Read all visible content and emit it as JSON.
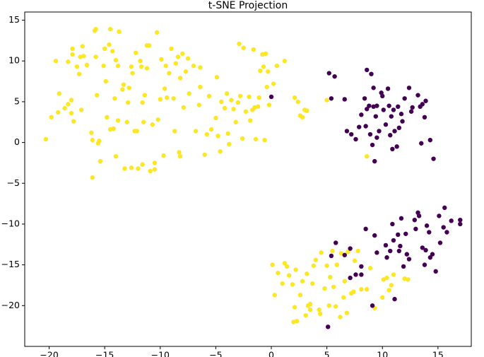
{
  "chart_data": {
    "type": "scatter",
    "title": "t-SNE Projection",
    "xlim": [
      -22.2,
      18.0
    ],
    "ylim": [
      -25,
      16
    ],
    "xticks": [
      {
        "value": -20,
        "label": "−20"
      },
      {
        "value": -15,
        "label": "−15"
      },
      {
        "value": -10,
        "label": "−10"
      },
      {
        "value": -5,
        "label": "−5"
      },
      0,
      5,
      10,
      15
    ],
    "yticks": [
      {
        "value": -20,
        "label": "−20"
      },
      {
        "value": -15,
        "label": "−15"
      },
      {
        "value": -10,
        "label": "−10"
      },
      {
        "value": -5,
        "label": "−5"
      },
      0,
      5,
      10,
      15
    ],
    "grid": false,
    "series": [
      {
        "color": "#fde725",
        "x": [
          -20.3,
          -19.8,
          -19.4,
          -19.2,
          -19.1,
          -18.6,
          -18.3,
          -18.3,
          -18.0,
          -18.0,
          -17.9,
          -17.9,
          -17.8,
          -17.5,
          -17.3,
          -17.2,
          -17.1,
          -17.0,
          -16.9,
          -16.6,
          -16.2,
          -16.1,
          -16.1,
          -15.9,
          -15.8,
          -15.8,
          -15.7,
          -15.6,
          -15.5,
          -15.4,
          -15.1,
          -15.0,
          -14.9,
          -14.8,
          -14.6,
          -14.5,
          -14.5,
          -14.3,
          -14.2,
          -14.1,
          -14.0,
          -14.0,
          -13.8,
          -13.8,
          -13.7,
          -13.4,
          -13.3,
          -13.2,
          -13.0,
          -12.9,
          -12.8,
          -12.6,
          -12.6,
          -12.5,
          -12.3,
          -12.2,
          -12.1,
          -12.0,
          -11.8,
          -11.7,
          -11.6,
          -11.6,
          -11.5,
          -11.4,
          -11.2,
          -11.2,
          -11.0,
          -10.9,
          -10.7,
          -10.5,
          -10.5,
          -10.3,
          -10.2,
          -10.0,
          -9.9,
          -9.7,
          -9.6,
          -9.5,
          -9.4,
          -9.2,
          -9.0,
          -8.8,
          -8.7,
          -8.6,
          -8.4,
          -8.3,
          -8.2,
          -8.2,
          -8.0,
          -7.9,
          -7.7,
          -7.5,
          -7.4,
          -7.0,
          -6.8,
          -6.5,
          -6.4,
          -6.4,
          -6.0,
          -5.8,
          -5.6,
          -5.4,
          -5.0,
          -4.9,
          -4.8,
          -4.6,
          -4.5,
          -4.2,
          -4.0,
          -3.9,
          -3.8,
          -3.6,
          -3.4,
          -3.2,
          -3.0,
          -2.9,
          -2.8,
          -2.6,
          -2.5,
          -2.3,
          -2.0,
          -1.9,
          -1.7,
          -1.6,
          -1.5,
          -1.4,
          -1.2,
          -1.1,
          -1.0,
          -0.8,
          -0.7,
          -0.6,
          -0.5,
          -0.4,
          -0.3,
          -0.2,
          0.2,
          0.5,
          1.2,
          2.1,
          2.4,
          2.6,
          2.8,
          3.0,
          3.2,
          5.0,
          8.6,
          0.1,
          0.3,
          0.6,
          1.0,
          1.2,
          1.4,
          1.6,
          1.9,
          2.1,
          2.2,
          2.0,
          2.3,
          2.6,
          2.8,
          3.1,
          3.2,
          3.3,
          3.5,
          3.5,
          3.7,
          3.8,
          4.0,
          4.3,
          4.4,
          4.5,
          4.8,
          5.0,
          5.2,
          5.3,
          5.5,
          5.6,
          5.8,
          5.9,
          6.2,
          6.3,
          6.5,
          6.6,
          6.8,
          6.9,
          7.2,
          7.4,
          7.5,
          7.8,
          8.1,
          8.6,
          8.9,
          9.3,
          10.0,
          10.1,
          10.4,
          10.6,
          10.8,
          11.0,
          12.0,
          12.3
        ],
        "values": [
          0.4,
          3.1,
          10,
          3.7,
          6,
          4.2,
          9.9,
          4.7,
          5.2,
          3.6,
          10.8,
          11.5,
          2.6,
          9.3,
          8.4,
          10.5,
          4,
          11.8,
          10.6,
          9.5,
          1.2,
          0.3,
          -4.3,
          13.7,
          13.9,
          10.5,
          5.8,
          -0.1,
          0.2,
          -2.3,
          9.4,
          11.5,
          7.5,
          3.1,
          12.0,
          1.6,
          13.9,
          11.2,
          1.7,
          5.4,
          10.1,
          -1.7,
          2.7,
          9.4,
          13.6,
          6.5,
          7.1,
          -3.2,
          2.5,
          4.9,
          6.7,
          -3.1,
          9.3,
          8.5,
          1.4,
          11.0,
          1.4,
          -3.2,
          10,
          9.3,
          4.9,
          -2.7,
          2.5,
          5.8,
          11.9,
          9.1,
          11.9,
          -3.5,
          2.2,
          -3.3,
          -2.5,
          13.5,
          2.8,
          5.3,
          10.2,
          -1.6,
          6.6,
          9.4,
          5.5,
          8.5,
          11.5,
          5.4,
          1.4,
          9.7,
          10.5,
          -1.2,
          7.9,
          -1.7,
          10.9,
          4.3,
          8.7,
          10.3,
          6.0,
          9.4,
          1.4,
          4.6,
          6.8,
          9.2,
          -1.5,
          1.0,
          5.7,
          1.6,
          3.0,
          8.0,
          0.8,
          -1.1,
          5.0,
          4.2,
          6.0,
          1.1,
          -0.2,
          5.2,
          4.1,
          2.5,
          4.9,
          12.1,
          5.7,
          0.5,
          11.6,
          3.8,
          5.6,
          2.7,
          4.0,
          11.4,
          4.3,
          0.4,
          4.4,
          5.5,
          8.8,
          10.8,
          9.3,
          0.3,
          10.9,
          6.8,
          8.7,
          4.6,
          7.2,
          9.4,
          10,
          5.5,
          5.0,
          3.3,
          3.1,
          4.0,
          3.9,
          5.2,
          -1.7,
          -15.0,
          -18.7,
          -16.0,
          -17.3,
          -14.8,
          -15.2,
          -16.3,
          -17.4,
          -20.2,
          -15.6,
          -22.0,
          -21.9,
          -18.7,
          -17.0,
          -21.2,
          -16.1,
          -20.0,
          -20.5,
          -19.8,
          -17.3,
          -15.1,
          -14.4,
          -20.5,
          -21.0,
          -13.5,
          -17.9,
          -15.1,
          -20.0,
          -16.5,
          -13.3,
          -17.7,
          -20.1,
          -15.0,
          -21.4,
          -13.6,
          -19.0,
          -17.0,
          -20.9,
          -13.4,
          -18.5,
          -18.3,
          -14.5,
          -13.3,
          -18.0,
          -18.0,
          -15.4,
          -20.3,
          -19.0,
          -16.8,
          -16.6,
          -18.1,
          -17.5,
          -16.2,
          -16.7,
          -16.8
        ]
      },
      {
        "color": "#440154",
        "x": [
          0.0,
          5.2,
          5.4,
          5.7,
          6.6,
          6.8,
          7.2,
          7.6,
          7.9,
          8.1,
          8.4,
          8.5,
          8.6,
          8.6,
          8.8,
          8.9,
          9.0,
          9.1,
          9.2,
          9.2,
          9.3,
          9.4,
          9.5,
          9.5,
          9.7,
          9.9,
          10.0,
          10.1,
          10.3,
          10.5,
          10.6,
          10.7,
          10.8,
          10.9,
          11.0,
          11.1,
          11.3,
          11.4,
          11.5,
          11.7,
          11.8,
          12.0,
          12.4,
          12.6,
          12.7,
          13.2,
          13.4,
          13.5,
          13.6,
          13.8,
          13.9,
          14.3,
          14.6,
          5.4,
          5.8,
          6.6,
          7.1,
          7.1,
          7.6,
          8.1,
          8.1,
          8.5,
          9.1,
          9.3,
          9.5,
          10.3,
          10.4,
          10.7,
          10.9,
          11.0,
          11.1,
          11.4,
          11.5,
          11.6,
          11.7,
          11.9,
          12.1,
          12.2,
          12.4,
          12.9,
          13.0,
          13.2,
          13.3,
          13.6,
          13.8,
          13.9,
          14.0,
          14.2,
          14.3,
          14.5,
          14.8,
          15.1,
          15.2,
          15.5,
          15.6,
          15.8,
          16.2,
          17.0,
          17.0,
          5.1
        ],
        "values": [
          5.6,
          8.5,
          5.4,
          8.1,
          5.3,
          1.4,
          1.0,
          0.4,
          1.9,
          3.4,
          5.4,
          2.0,
          8.9,
          4.1,
          4.5,
          1.0,
          8.4,
          -0.3,
          6.7,
          4.4,
          -2.3,
          3.2,
          0.6,
          4.5,
          1.4,
          6.1,
          5.7,
          4.0,
          2.2,
          6.6,
          4.5,
          0.9,
          3.2,
          -0.8,
          4.0,
          1.4,
          -0.5,
          4.4,
          1.8,
          3.5,
          2.6,
          5.4,
          6.7,
          3.8,
          4.3,
          5.8,
          4.4,
          -0.1,
          4.7,
          3.1,
          5.1,
          0.3,
          -2.0,
          -13.9,
          -12.3,
          -13.8,
          -13.0,
          -16.6,
          -16.2,
          -15.2,
          -16.2,
          -10.6,
          -20.0,
          -11.4,
          -13.5,
          -12.6,
          -14.1,
          -13.3,
          -10.0,
          -12.0,
          -19.2,
          -11.3,
          -13.3,
          -12.7,
          -9.3,
          -15.2,
          -11.2,
          -13.7,
          -14.3,
          -9.5,
          -10.6,
          -8.6,
          -9.0,
          -12.9,
          -15.0,
          -13.2,
          -10.2,
          -11.0,
          -14.1,
          -13.7,
          -15.8,
          -9.0,
          -12.3,
          -10.4,
          -8.0,
          -11.0,
          -9.6,
          -9.5,
          -10.0,
          -22.6
        ]
      }
    ]
  }
}
